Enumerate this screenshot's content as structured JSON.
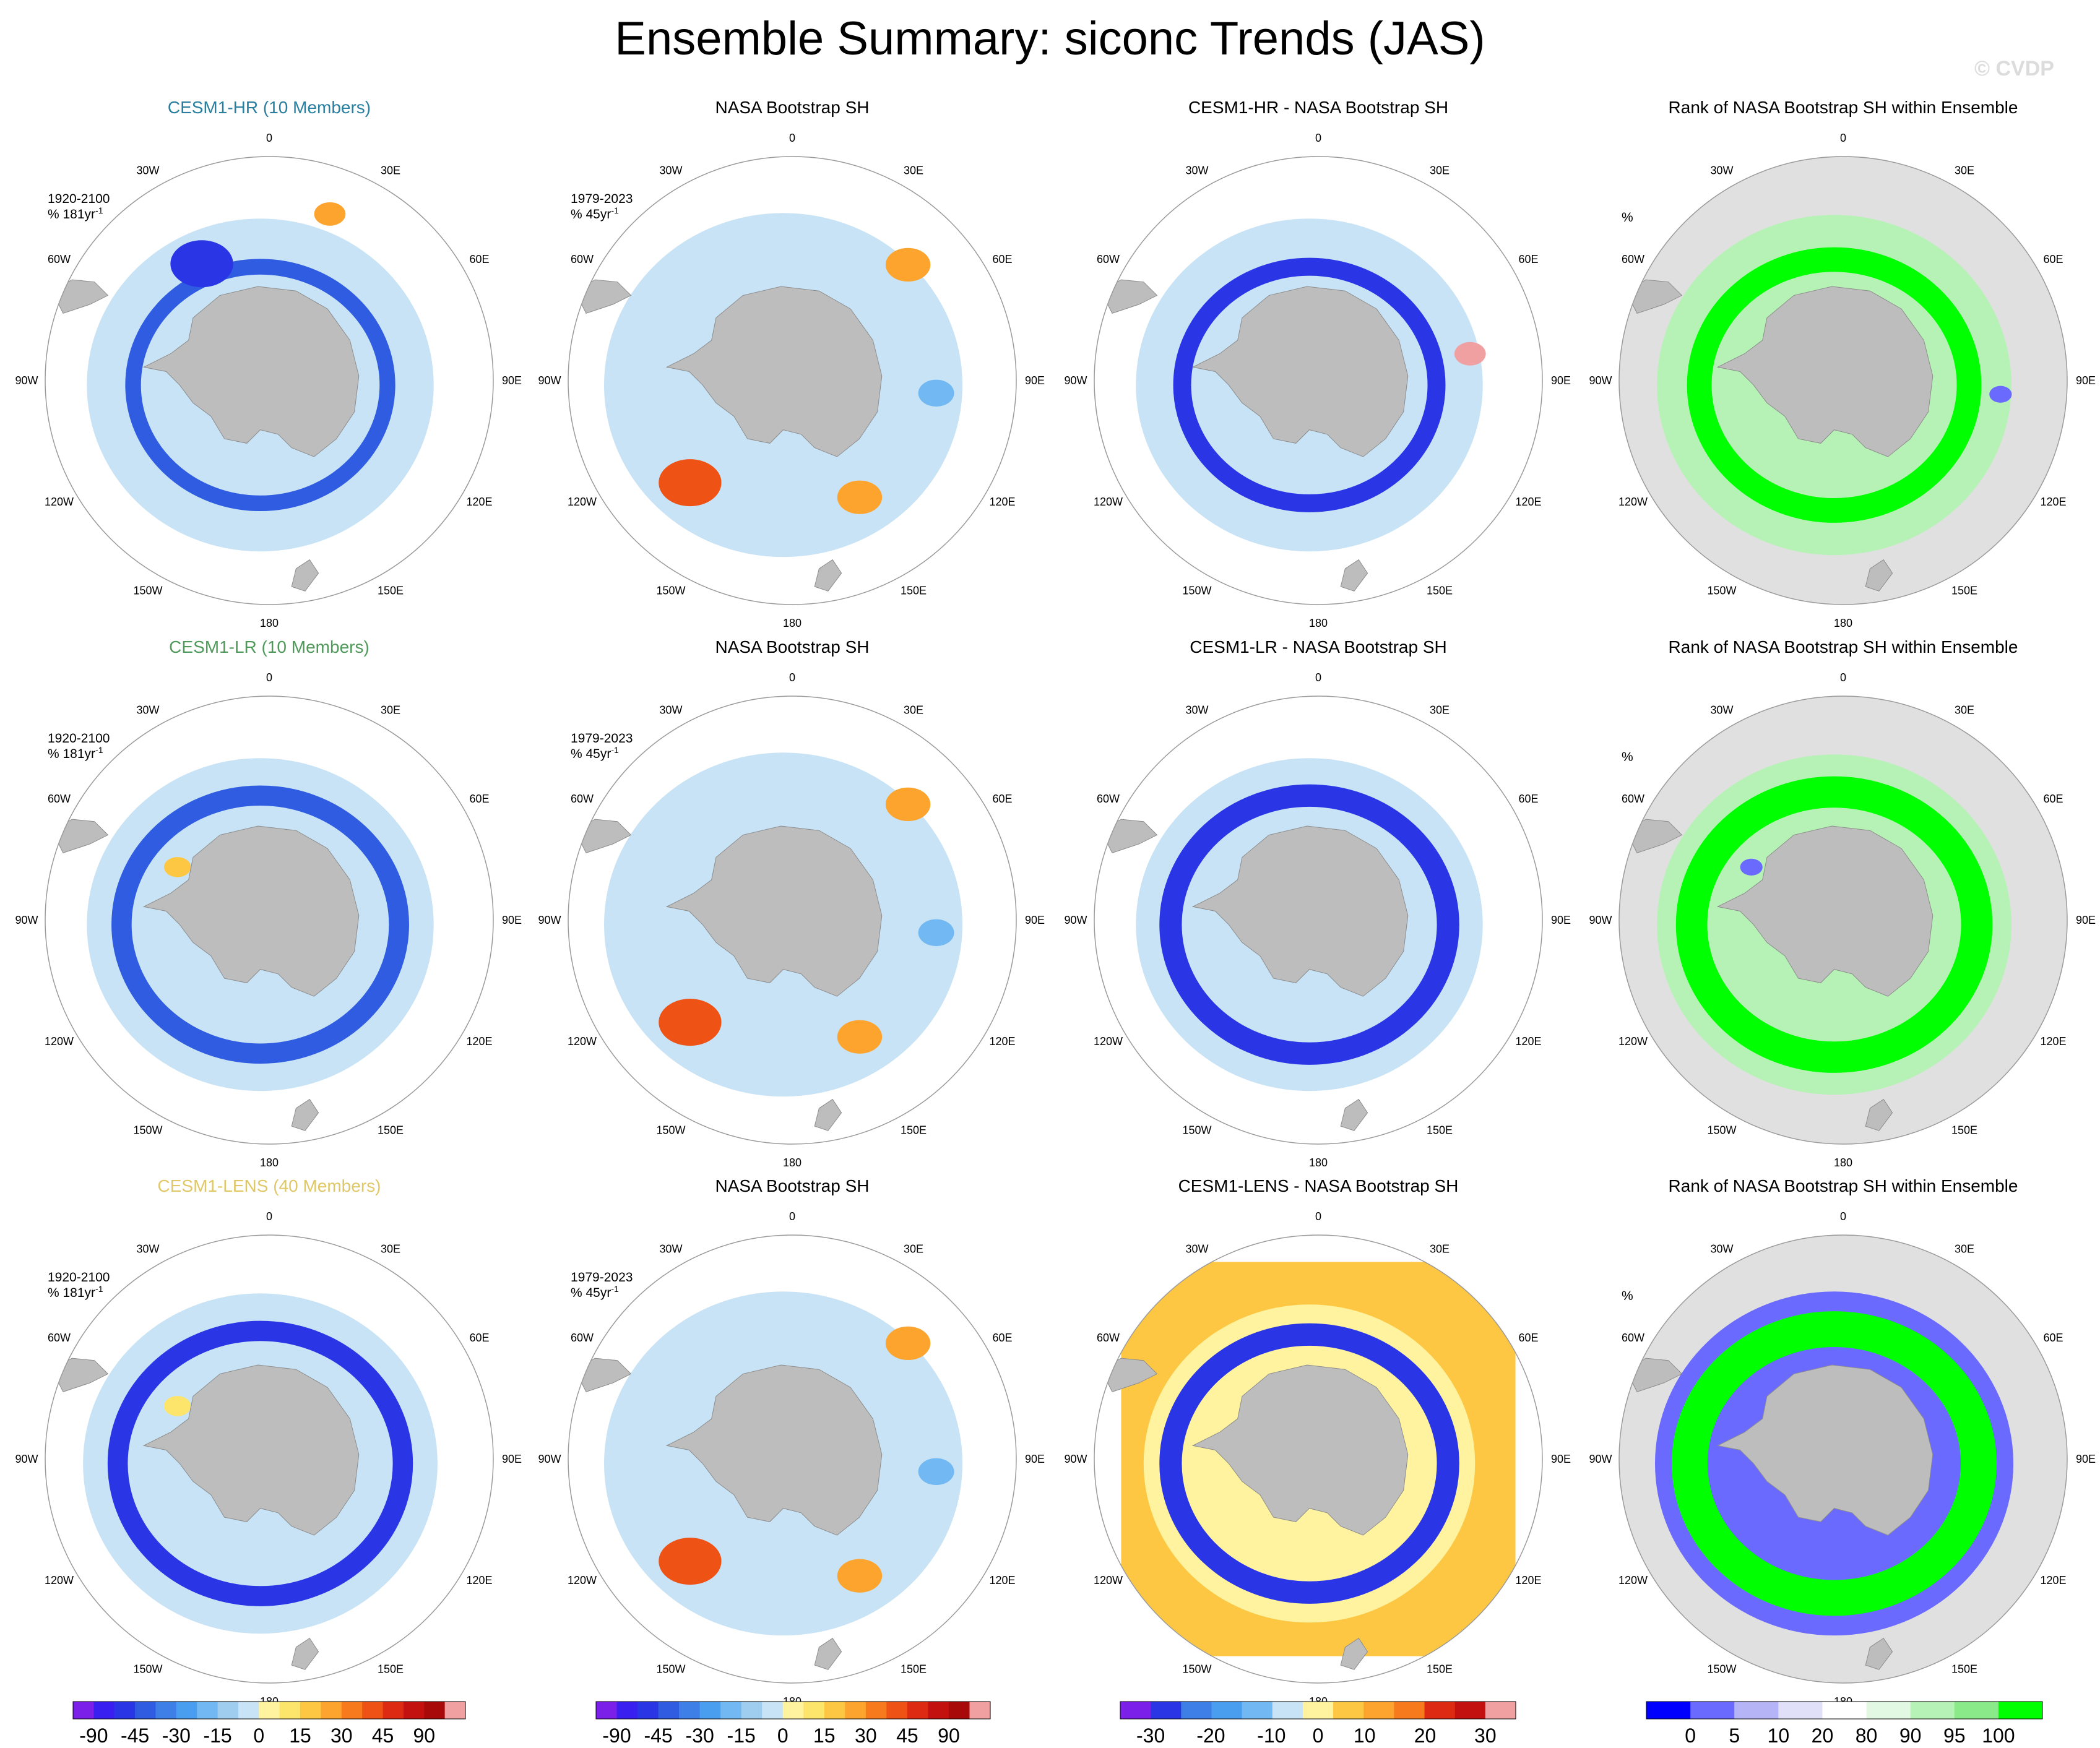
{
  "title": "Ensemble Summary: siconc Trends (JAS)",
  "watermark": "© CVDP",
  "colors": {
    "ocean_missing": "#ffffff",
    "land": "#bdbdbd",
    "rank_background": "#e0e0e0",
    "circle_edge": "#9a9a9a",
    "title_hr": "#2a7fa0",
    "title_lr": "#4f9a5a",
    "title_lens": "#e0c868"
  },
  "longitude_labels": [
    "0",
    "30E",
    "60E",
    "90E",
    "120E",
    "150E",
    "180",
    "150W",
    "120W",
    "90W",
    "60W",
    "30W"
  ],
  "rows": [
    {
      "ensemble": "CESM1-HR (10 Members)",
      "ensemble_color": "#2a7fa0",
      "panels": [
        {
          "title": "CESM1-HR (10 Members)",
          "period": "1920-2100",
          "units": "% 181yr",
          "units_exp": "-1",
          "kind": "model",
          "field": "hr"
        },
        {
          "title": "NASA Bootstrap SH",
          "period": "1979-2023",
          "units": "% 45yr",
          "units_exp": "-1",
          "kind": "obs",
          "field": "obs"
        },
        {
          "title": "CESM1-HR - NASA Bootstrap SH",
          "period": "",
          "units": "",
          "units_exp": "",
          "kind": "diff",
          "field": "hrdiff"
        },
        {
          "title": "Rank of NASA Bootstrap SH within Ensemble",
          "period": "",
          "units": "%",
          "units_exp": "",
          "kind": "rank",
          "field": "rank1"
        }
      ]
    },
    {
      "ensemble": "CESM1-LR (10 Members)",
      "ensemble_color": "#4f9a5a",
      "panels": [
        {
          "title": "CESM1-LR (10 Members)",
          "period": "1920-2100",
          "units": "% 181yr",
          "units_exp": "-1",
          "kind": "model",
          "field": "lr"
        },
        {
          "title": "NASA Bootstrap SH",
          "period": "1979-2023",
          "units": "% 45yr",
          "units_exp": "-1",
          "kind": "obs",
          "field": "obs"
        },
        {
          "title": "CESM1-LR - NASA Bootstrap SH",
          "period": "",
          "units": "",
          "units_exp": "",
          "kind": "diff",
          "field": "lrdiff"
        },
        {
          "title": "Rank of NASA Bootstrap SH within Ensemble",
          "period": "",
          "units": "%",
          "units_exp": "",
          "kind": "rank",
          "field": "rank2"
        }
      ]
    },
    {
      "ensemble": "CESM1-LENS (40 Members)",
      "ensemble_color": "#e0c868",
      "panels": [
        {
          "title": "CESM1-LENS (40 Members)",
          "period": "1920-2100",
          "units": "% 181yr",
          "units_exp": "-1",
          "kind": "model",
          "field": "lens"
        },
        {
          "title": "NASA Bootstrap SH",
          "period": "1979-2023",
          "units": "% 45yr",
          "units_exp": "-1",
          "kind": "obs",
          "field": "obs"
        },
        {
          "title": "CESM1-LENS - NASA Bootstrap SH",
          "period": "",
          "units": "",
          "units_exp": "",
          "kind": "diff",
          "field": "lensdiff"
        },
        {
          "title": "Rank of NASA Bootstrap SH within Ensemble",
          "period": "",
          "units": "%",
          "units_exp": "",
          "kind": "rank",
          "field": "rank3"
        }
      ]
    }
  ],
  "chart_data": {
    "type": "heatmap",
    "projection": "south polar stereographic",
    "colorbars": [
      {
        "name": "trend",
        "colors": [
          "#7b20e8",
          "#3a20f0",
          "#2a35e6",
          "#2f5ce0",
          "#3d7fe6",
          "#4a9ef0",
          "#72b8f2",
          "#9fcdf0",
          "#c8e3f5",
          "#fff3a0",
          "#fde46a",
          "#fdc744",
          "#fca42e",
          "#f77b1c",
          "#ee5215",
          "#dd2a12",
          "#c3110f",
          "#a80a0a",
          "#f0a0a0"
        ],
        "tick_labels": [
          "-90",
          "-45",
          "-30",
          "-15",
          "0",
          "15",
          "30",
          "45",
          "90"
        ],
        "tick_positions": [
          1,
          3,
          5,
          7,
          9,
          11,
          13,
          15,
          17
        ]
      },
      {
        "name": "difference",
        "colors": [
          "#7b20e8",
          "#2a35e6",
          "#3d7fe6",
          "#4a9ef0",
          "#72b8f2",
          "#c8e3f5",
          "#fff3a0",
          "#fdc744",
          "#fca42e",
          "#f77b1c",
          "#dd2a12",
          "#c3110f",
          "#f0a0a0"
        ],
        "tick_labels": [
          "-30",
          "-20",
          "-10",
          "0",
          "10",
          "20",
          "30"
        ],
        "tick_positions": [
          1,
          2.98,
          4.97,
          6.5,
          8.03,
          10.02,
          12
        ]
      },
      {
        "name": "rank",
        "colors": [
          "#0000ff",
          "#6a6aff",
          "#b4b4f6",
          "#e0e0f8",
          "#ffffff",
          "#e2f8e2",
          "#b6f2b6",
          "#8aea8a",
          "#00ff00"
        ],
        "tick_labels": [
          "0",
          "5",
          "10",
          "20",
          "80",
          "90",
          "95",
          "100"
        ],
        "tick_positions": [
          1,
          2,
          3,
          4,
          5,
          6,
          7,
          8
        ]
      }
    ],
    "fields": {
      "hr": {
        "colorbar": "trend",
        "features": [
          {
            "kind": "background",
            "value": -5,
            "band": [
              0.62,
              0.9
            ]
          },
          {
            "kind": "ring",
            "value": -45,
            "radius": 0.66,
            "width": 0.07
          },
          {
            "kind": "blob",
            "value": -70,
            "lon": 330,
            "lat_r": 0.7,
            "size": 0.14
          },
          {
            "kind": "blob",
            "value": 20,
            "lon": 20,
            "lat_r": 0.92,
            "size": 0.07
          }
        ]
      },
      "lr": {
        "colorbar": "trend",
        "features": [
          {
            "kind": "background",
            "value": -8,
            "band": [
              0.6,
              0.9
            ]
          },
          {
            "kind": "ring",
            "value": -55,
            "radius": 0.72,
            "width": 0.09
          },
          {
            "kind": "blob",
            "value": 15,
            "lon": 300,
            "lat_r": 0.55,
            "size": 0.06
          }
        ]
      },
      "lens": {
        "colorbar": "trend",
        "features": [
          {
            "kind": "background",
            "value": -10,
            "band": [
              0.58,
              0.92
            ]
          },
          {
            "kind": "ring",
            "value": -60,
            "radius": 0.74,
            "width": 0.09
          },
          {
            "kind": "blob",
            "value": 10,
            "lon": 300,
            "lat_r": 0.55,
            "size": 0.06
          }
        ]
      },
      "obs": {
        "colorbar": "trend",
        "features": [
          {
            "kind": "background",
            "value": -8,
            "band": [
              0.6,
              0.93
            ]
          },
          {
            "kind": "blob",
            "value": 40,
            "lon": 225,
            "lat_r": 0.75,
            "size": 0.14
          },
          {
            "kind": "blob",
            "value": 25,
            "lon": 45,
            "lat_r": 0.85,
            "size": 0.1
          },
          {
            "kind": "blob",
            "value": 20,
            "lon": 150,
            "lat_r": 0.7,
            "size": 0.1
          },
          {
            "kind": "blob",
            "value": -25,
            "lon": 95,
            "lat_r": 0.75,
            "size": 0.08
          }
        ]
      },
      "hrdiff": {
        "colorbar": "difference",
        "features": [
          {
            "kind": "background",
            "value": -8,
            "band": [
              0.6,
              0.9
            ]
          },
          {
            "kind": "ring",
            "value": -32,
            "radius": 0.66,
            "width": 0.08
          },
          {
            "kind": "blob",
            "value": 28,
            "lon": 80,
            "lat_r": 0.8,
            "size": 0.07
          }
        ]
      },
      "lrdiff": {
        "colorbar": "difference",
        "features": [
          {
            "kind": "background",
            "value": -8,
            "band": [
              0.6,
              0.9
            ]
          },
          {
            "kind": "ring",
            "value": -32,
            "radius": 0.72,
            "width": 0.1
          }
        ]
      },
      "lensdiff": {
        "colorbar": "difference",
        "features": [
          {
            "kind": "box",
            "value": 4,
            "half": 0.88
          },
          {
            "kind": "background",
            "value": -6,
            "band": [
              0.6,
              0.86
            ]
          },
          {
            "kind": "ring",
            "value": -32,
            "radius": 0.72,
            "width": 0.1
          }
        ]
      },
      "rank1": {
        "colorbar": "rank",
        "features": [
          {
            "kind": "background",
            "value": 85,
            "band": [
              0.58,
              0.92
            ]
          },
          {
            "kind": "ring",
            "value": 100,
            "radius": 0.7,
            "width": 0.11
          },
          {
            "kind": "blob",
            "value": 0,
            "lon": 95,
            "lat_r": 0.82,
            "size": 0.05
          }
        ]
      },
      "rank2": {
        "colorbar": "rank",
        "features": [
          {
            "kind": "background",
            "value": 85,
            "band": [
              0.58,
              0.92
            ]
          },
          {
            "kind": "ring",
            "value": 100,
            "radius": 0.74,
            "width": 0.14
          },
          {
            "kind": "blob",
            "value": 0,
            "lon": 300,
            "lat_r": 0.55,
            "size": 0.05
          }
        ]
      },
      "rank3": {
        "colorbar": "rank",
        "features": [
          {
            "kind": "background",
            "value": 2,
            "band": [
              0.6,
              0.93
            ]
          },
          {
            "kind": "ring",
            "value": 100,
            "radius": 0.75,
            "width": 0.16
          },
          {
            "kind": "blob",
            "value": 0,
            "lon": 300,
            "lat_r": 0.55,
            "size": 0.06
          }
        ]
      }
    }
  }
}
